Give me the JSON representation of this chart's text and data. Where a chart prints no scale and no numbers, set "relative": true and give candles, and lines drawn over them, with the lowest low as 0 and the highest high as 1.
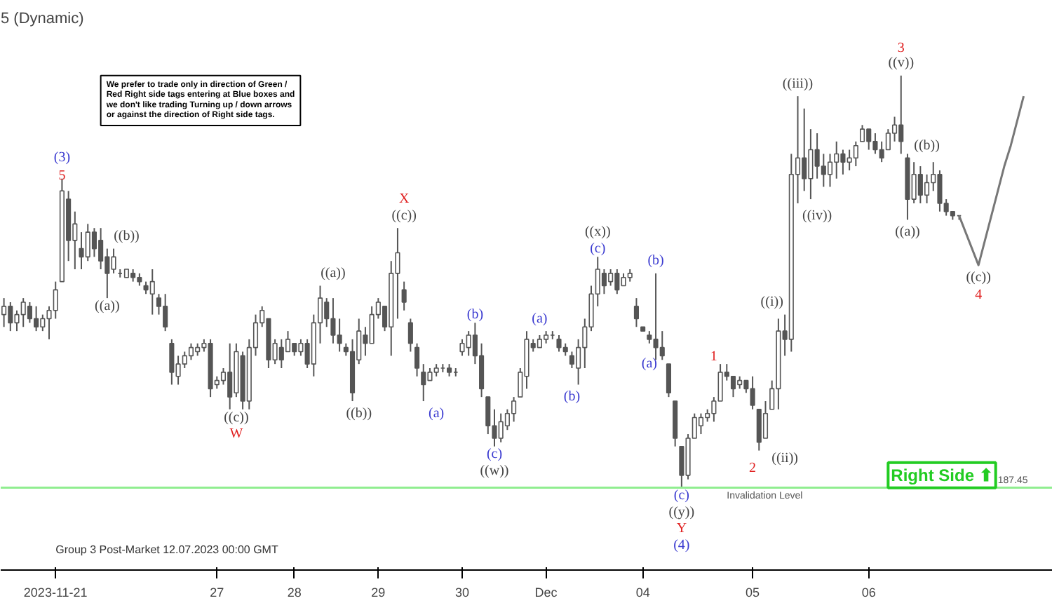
{
  "chart_data": {
    "type": "candlestick",
    "title": "5 (Dynamic)",
    "relative": true,
    "color": "#555555",
    "categories": [
      null,
      null,
      null,
      null,
      null,
      null,
      null,
      null,
      "2023-11-21",
      null,
      null,
      null,
      null,
      null,
      null,
      null,
      null,
      null,
      null,
      null,
      null,
      null,
      null,
      null,
      null,
      null,
      null,
      null,
      null,
      null,
      null,
      null,
      null,
      "27",
      null,
      null,
      null,
      null,
      null,
      null,
      null,
      null,
      null,
      null,
      null,
      "28",
      null,
      null,
      null,
      null,
      null,
      null,
      null,
      null,
      null,
      null,
      null,
      null,
      "29",
      null,
      null,
      null,
      null,
      null,
      null,
      null,
      null,
      null,
      null,
      null,
      null,
      "30",
      null,
      null,
      null,
      null,
      null,
      null,
      null,
      null,
      null,
      null,
      null,
      null,
      "Dec",
      null,
      null,
      null,
      null,
      null,
      null,
      null,
      null,
      null,
      null,
      null,
      null,
      null,
      null,
      "04",
      null,
      null,
      null,
      null,
      null,
      null,
      null,
      null,
      null,
      null,
      null,
      null,
      null,
      null,
      null,
      null,
      "05",
      null,
      null,
      null,
      null,
      null,
      null,
      null,
      null,
      null,
      null,
      null,
      null,
      null,
      null,
      null,
      null,
      null,
      "06",
      null,
      null,
      null,
      null,
      null,
      null,
      null,
      null,
      null,
      null,
      null,
      null,
      null,
      null,
      null,
      null,
      null,
      null,
      null,
      null,
      null,
      null,
      null,
      null,
      null,
      null,
      null,
      null
    ],
    "ohlc": [
      [
        0.42,
        0.46,
        0.39,
        0.44
      ],
      [
        0.44,
        0.45,
        0.38,
        0.4
      ],
      [
        0.4,
        0.43,
        0.38,
        0.42
      ],
      [
        0.42,
        0.46,
        0.39,
        0.45
      ],
      [
        0.44,
        0.45,
        0.4,
        0.41
      ],
      [
        0.41,
        0.44,
        0.38,
        0.39
      ],
      [
        0.39,
        0.42,
        0.38,
        0.41
      ],
      [
        0.41,
        0.44,
        0.36,
        0.43
      ],
      [
        0.43,
        0.5,
        0.41,
        0.48
      ],
      [
        0.5,
        0.75,
        0.5,
        0.72
      ],
      [
        0.7,
        0.72,
        0.55,
        0.6
      ],
      [
        0.6,
        0.67,
        0.53,
        0.64
      ],
      [
        0.58,
        0.62,
        0.53,
        0.56
      ],
      [
        0.56,
        0.64,
        0.55,
        0.62
      ],
      [
        0.62,
        0.63,
        0.56,
        0.58
      ],
      [
        0.6,
        0.63,
        0.53,
        0.55
      ],
      [
        0.56,
        0.58,
        0.46,
        0.52
      ],
      [
        0.53,
        0.58,
        0.52,
        0.56
      ],
      [
        0.52,
        0.53,
        0.51,
        0.52
      ],
      [
        0.51,
        0.53,
        0.51,
        0.53
      ],
      [
        0.52,
        0.53,
        0.5,
        0.51
      ],
      [
        0.51,
        0.52,
        0.49,
        0.5
      ],
      [
        0.49,
        0.5,
        0.47,
        0.48
      ],
      [
        0.47,
        0.53,
        0.42,
        0.5
      ],
      [
        0.46,
        0.47,
        0.42,
        0.44
      ],
      [
        0.44,
        0.47,
        0.38,
        0.39
      ],
      [
        0.35,
        0.36,
        0.25,
        0.28
      ],
      [
        0.27,
        0.32,
        0.25,
        0.3
      ],
      [
        0.3,
        0.33,
        0.29,
        0.32
      ],
      [
        0.32,
        0.35,
        0.31,
        0.34
      ],
      [
        0.33,
        0.35,
        0.32,
        0.34
      ],
      [
        0.34,
        0.36,
        0.33,
        0.35
      ],
      [
        0.35,
        0.36,
        0.22,
        0.24
      ],
      [
        0.25,
        0.27,
        0.24,
        0.26
      ],
      [
        0.26,
        0.29,
        0.25,
        0.28
      ],
      [
        0.28,
        0.35,
        0.19,
        0.22
      ],
      [
        0.23,
        0.35,
        0.22,
        0.33
      ],
      [
        0.32,
        0.33,
        0.19,
        0.21
      ],
      [
        0.21,
        0.36,
        0.19,
        0.34
      ],
      [
        0.34,
        0.42,
        0.32,
        0.4
      ],
      [
        0.4,
        0.44,
        0.39,
        0.43
      ],
      [
        0.41,
        0.41,
        0.29,
        0.31
      ],
      [
        0.31,
        0.36,
        0.3,
        0.35
      ],
      [
        0.34,
        0.36,
        0.29,
        0.31
      ],
      [
        0.33,
        0.38,
        0.33,
        0.36
      ],
      [
        0.35,
        0.35,
        0.32,
        0.33
      ],
      [
        0.33,
        0.36,
        0.32,
        0.35
      ],
      [
        0.35,
        0.36,
        0.29,
        0.3
      ],
      [
        0.3,
        0.42,
        0.27,
        0.4
      ],
      [
        0.4,
        0.49,
        0.35,
        0.46
      ],
      [
        0.45,
        0.46,
        0.39,
        0.41
      ],
      [
        0.41,
        0.46,
        0.35,
        0.37
      ],
      [
        0.37,
        0.41,
        0.33,
        0.35
      ],
      [
        0.34,
        0.35,
        0.32,
        0.33
      ],
      [
        0.33,
        0.36,
        0.21,
        0.23
      ],
      [
        0.31,
        0.41,
        0.3,
        0.38
      ],
      [
        0.37,
        0.39,
        0.32,
        0.35
      ],
      [
        0.35,
        0.44,
        0.35,
        0.42
      ],
      [
        0.42,
        0.46,
        0.41,
        0.45
      ],
      [
        0.44,
        0.44,
        0.38,
        0.39
      ],
      [
        0.39,
        0.55,
        0.32,
        0.52
      ],
      [
        0.52,
        0.63,
        0.41,
        0.57
      ],
      [
        0.48,
        0.5,
        0.43,
        0.45
      ],
      [
        0.4,
        0.41,
        0.33,
        0.35
      ],
      [
        0.34,
        0.35,
        0.27,
        0.29
      ],
      [
        0.28,
        0.3,
        0.21,
        0.25
      ],
      [
        0.26,
        0.29,
        0.26,
        0.28
      ],
      [
        0.28,
        0.3,
        0.27,
        0.29
      ],
      [
        0.29,
        0.3,
        0.28,
        0.29
      ],
      [
        0.29,
        0.3,
        0.27,
        0.28
      ],
      [
        0.28,
        0.29,
        0.27,
        0.28
      ],
      [
        0.33,
        0.36,
        0.32,
        0.35
      ],
      [
        0.34,
        0.38,
        0.32,
        0.37
      ],
      [
        0.37,
        0.4,
        0.3,
        0.32
      ],
      [
        0.32,
        0.35,
        0.22,
        0.24
      ],
      [
        0.22,
        0.22,
        0.13,
        0.15
      ],
      [
        0.15,
        0.19,
        0.1,
        0.12
      ],
      [
        0.12,
        0.18,
        0.11,
        0.16
      ],
      [
        0.15,
        0.19,
        0.14,
        0.18
      ],
      [
        0.18,
        0.22,
        0.16,
        0.21
      ],
      [
        0.22,
        0.29,
        0.22,
        0.28
      ],
      [
        0.27,
        0.38,
        0.24,
        0.36
      ],
      [
        0.35,
        0.36,
        0.33,
        0.34
      ],
      [
        0.34,
        0.37,
        0.34,
        0.36
      ],
      [
        0.36,
        0.38,
        0.35,
        0.37
      ],
      [
        0.37,
        0.38,
        0.36,
        0.37
      ],
      [
        0.36,
        0.37,
        0.33,
        0.34
      ],
      [
        0.34,
        0.35,
        0.32,
        0.33
      ],
      [
        0.32,
        0.33,
        0.29,
        0.3
      ],
      [
        0.29,
        0.36,
        0.25,
        0.34
      ],
      [
        0.34,
        0.41,
        0.29,
        0.39
      ],
      [
        0.39,
        0.49,
        0.38,
        0.47
      ],
      [
        0.47,
        0.56,
        0.44,
        0.53
      ],
      [
        0.52,
        0.53,
        0.47,
        0.49
      ],
      [
        0.5,
        0.53,
        0.49,
        0.52
      ],
      [
        0.52,
        0.53,
        0.47,
        0.48
      ],
      [
        0.49,
        0.52,
        0.49,
        0.51
      ],
      [
        0.51,
        0.53,
        0.5,
        0.52
      ],
      [
        0.44,
        0.46,
        0.39,
        0.41
      ],
      [
        0.39,
        0.39,
        0.38,
        0.38
      ],
      [
        0.37,
        0.38,
        0.35,
        0.36
      ],
      [
        0.36,
        0.52,
        0.31,
        0.34
      ],
      [
        0.34,
        0.38,
        0.31,
        0.32
      ],
      [
        0.3,
        0.3,
        0.22,
        0.23
      ],
      [
        0.21,
        0.21,
        0.1,
        0.12
      ],
      [
        0.1,
        0.1,
        0.0,
        0.03
      ],
      [
        0.03,
        0.13,
        0.02,
        0.12
      ],
      [
        0.12,
        0.18,
        0.12,
        0.17
      ],
      [
        0.15,
        0.18,
        0.13,
        0.17
      ],
      [
        0.17,
        0.19,
        0.16,
        0.18
      ],
      [
        0.18,
        0.22,
        0.16,
        0.21
      ],
      [
        0.21,
        0.3,
        0.21,
        0.28
      ],
      [
        0.28,
        0.3,
        0.26,
        0.27
      ],
      [
        0.27,
        0.27,
        0.22,
        0.24
      ],
      [
        0.25,
        0.27,
        0.24,
        0.26
      ],
      [
        0.26,
        0.26,
        0.23,
        0.24
      ],
      [
        0.24,
        0.27,
        0.19,
        0.2
      ],
      [
        0.19,
        0.19,
        0.09,
        0.11
      ],
      [
        0.12,
        0.21,
        0.12,
        0.18
      ],
      [
        0.19,
        0.26,
        0.19,
        0.24
      ],
      [
        0.24,
        0.41,
        0.19,
        0.38
      ],
      [
        0.38,
        0.42,
        0.32,
        0.36
      ],
      [
        0.36,
        0.81,
        0.33,
        0.76
      ],
      [
        0.76,
        0.95,
        0.69,
        0.8
      ],
      [
        0.8,
        0.92,
        0.72,
        0.75
      ],
      [
        0.75,
        0.87,
        0.7,
        0.82
      ],
      [
        0.82,
        0.86,
        0.75,
        0.78
      ],
      [
        0.78,
        0.81,
        0.73,
        0.76
      ],
      [
        0.76,
        0.81,
        0.73,
        0.79
      ],
      [
        0.79,
        0.84,
        0.75,
        0.81
      ],
      [
        0.81,
        0.82,
        0.76,
        0.79
      ],
      [
        0.79,
        0.82,
        0.77,
        0.8
      ],
      [
        0.8,
        0.84,
        0.78,
        0.83
      ],
      [
        0.84,
        0.88,
        0.84,
        0.87
      ],
      [
        0.87,
        0.87,
        0.82,
        0.84
      ],
      [
        0.84,
        0.86,
        0.81,
        0.82
      ],
      [
        0.82,
        0.84,
        0.79,
        0.8
      ],
      [
        0.82,
        0.87,
        0.82,
        0.86
      ],
      [
        0.86,
        0.9,
        0.84,
        0.88
      ],
      [
        0.88,
        1.0,
        0.81,
        0.84
      ],
      [
        0.8,
        0.81,
        0.65,
        0.7
      ],
      [
        0.7,
        0.79,
        0.69,
        0.76
      ],
      [
        0.76,
        0.78,
        0.69,
        0.71
      ],
      [
        0.71,
        0.76,
        0.69,
        0.74
      ],
      [
        0.74,
        0.79,
        0.72,
        0.76
      ],
      [
        0.76,
        0.77,
        0.67,
        0.69
      ],
      [
        0.69,
        0.7,
        0.66,
        0.67
      ],
      [
        0.67,
        0.67,
        0.65,
        0.66
      ],
      [
        0.66,
        0.66,
        0.65,
        0.66
      ],
      null,
      null,
      null,
      null,
      null,
      null,
      null,
      null,
      null,
      null,
      null,
      null,
      null,
      null
    ],
    "series": [
      {
        "type": "line",
        "color": "#777777",
        "values": [
          null,
          null,
          null,
          null,
          null,
          null,
          null,
          null,
          null,
          null,
          null,
          null,
          null,
          null,
          null,
          null,
          null,
          null,
          null,
          null,
          null,
          null,
          null,
          null,
          null,
          null,
          null,
          null,
          null,
          null,
          null,
          null,
          null,
          null,
          null,
          null,
          null,
          null,
          null,
          null,
          null,
          null,
          null,
          null,
          null,
          null,
          null,
          null,
          null,
          null,
          null,
          null,
          null,
          null,
          null,
          null,
          null,
          null,
          null,
          null,
          null,
          null,
          null,
          null,
          null,
          null,
          null,
          null,
          null,
          null,
          null,
          null,
          null,
          null,
          null,
          null,
          null,
          null,
          null,
          null,
          null,
          null,
          null,
          null,
          null,
          null,
          null,
          null,
          null,
          null,
          null,
          null,
          null,
          null,
          null,
          null,
          null,
          null,
          null,
          null,
          null,
          null,
          null,
          null,
          null,
          null,
          null,
          null,
          null,
          null,
          null,
          null,
          null,
          null,
          null,
          null,
          null,
          null,
          null,
          null,
          null,
          null,
          null,
          null,
          null,
          null,
          null,
          null,
          null,
          null,
          null,
          null,
          null,
          null,
          null,
          null,
          null,
          null,
          null,
          null,
          null,
          null,
          null,
          null,
          null,
          null,
          null,
          null,
          0.66,
          0.62,
          0.58,
          0.54,
          0.6,
          0.66,
          0.72,
          0.78,
          0.83,
          0.89,
          0.95,
          null,
          null,
          null,
          null
        ]
      }
    ],
    "ref_lines": [
      {
        "axis": "y",
        "value": 0,
        "label": "Invalidation Level",
        "color": "#90ee90"
      }
    ],
    "annotations": [
      "We prefer to trade only in direction of Green / Red Right side tags entering at Blue boxes and we don't like trading Turning up / down arrows or against the direction of Right side tags.",
      "Right Side ⬆",
      "Group 3 Post-Market 12.07.2023 00:00 GMT",
      "187.45",
      "(3)",
      "5",
      "((b))",
      "((a))",
      "((c))",
      "W",
      "((a))",
      "((b))",
      "X",
      "((c))",
      "(a)",
      "(b)",
      "(c)",
      "((w))",
      "(a)",
      "(b)",
      "(c)",
      "((x))",
      "(b)",
      "(a)",
      "(c)",
      "((y))",
      "Y",
      "(4)",
      "1",
      "2",
      "((i))",
      "((ii))",
      "((iii))",
      "((iv))",
      "((v))",
      "3",
      "((b))",
      "((a))",
      "((c))",
      "4"
    ]
  }
}
